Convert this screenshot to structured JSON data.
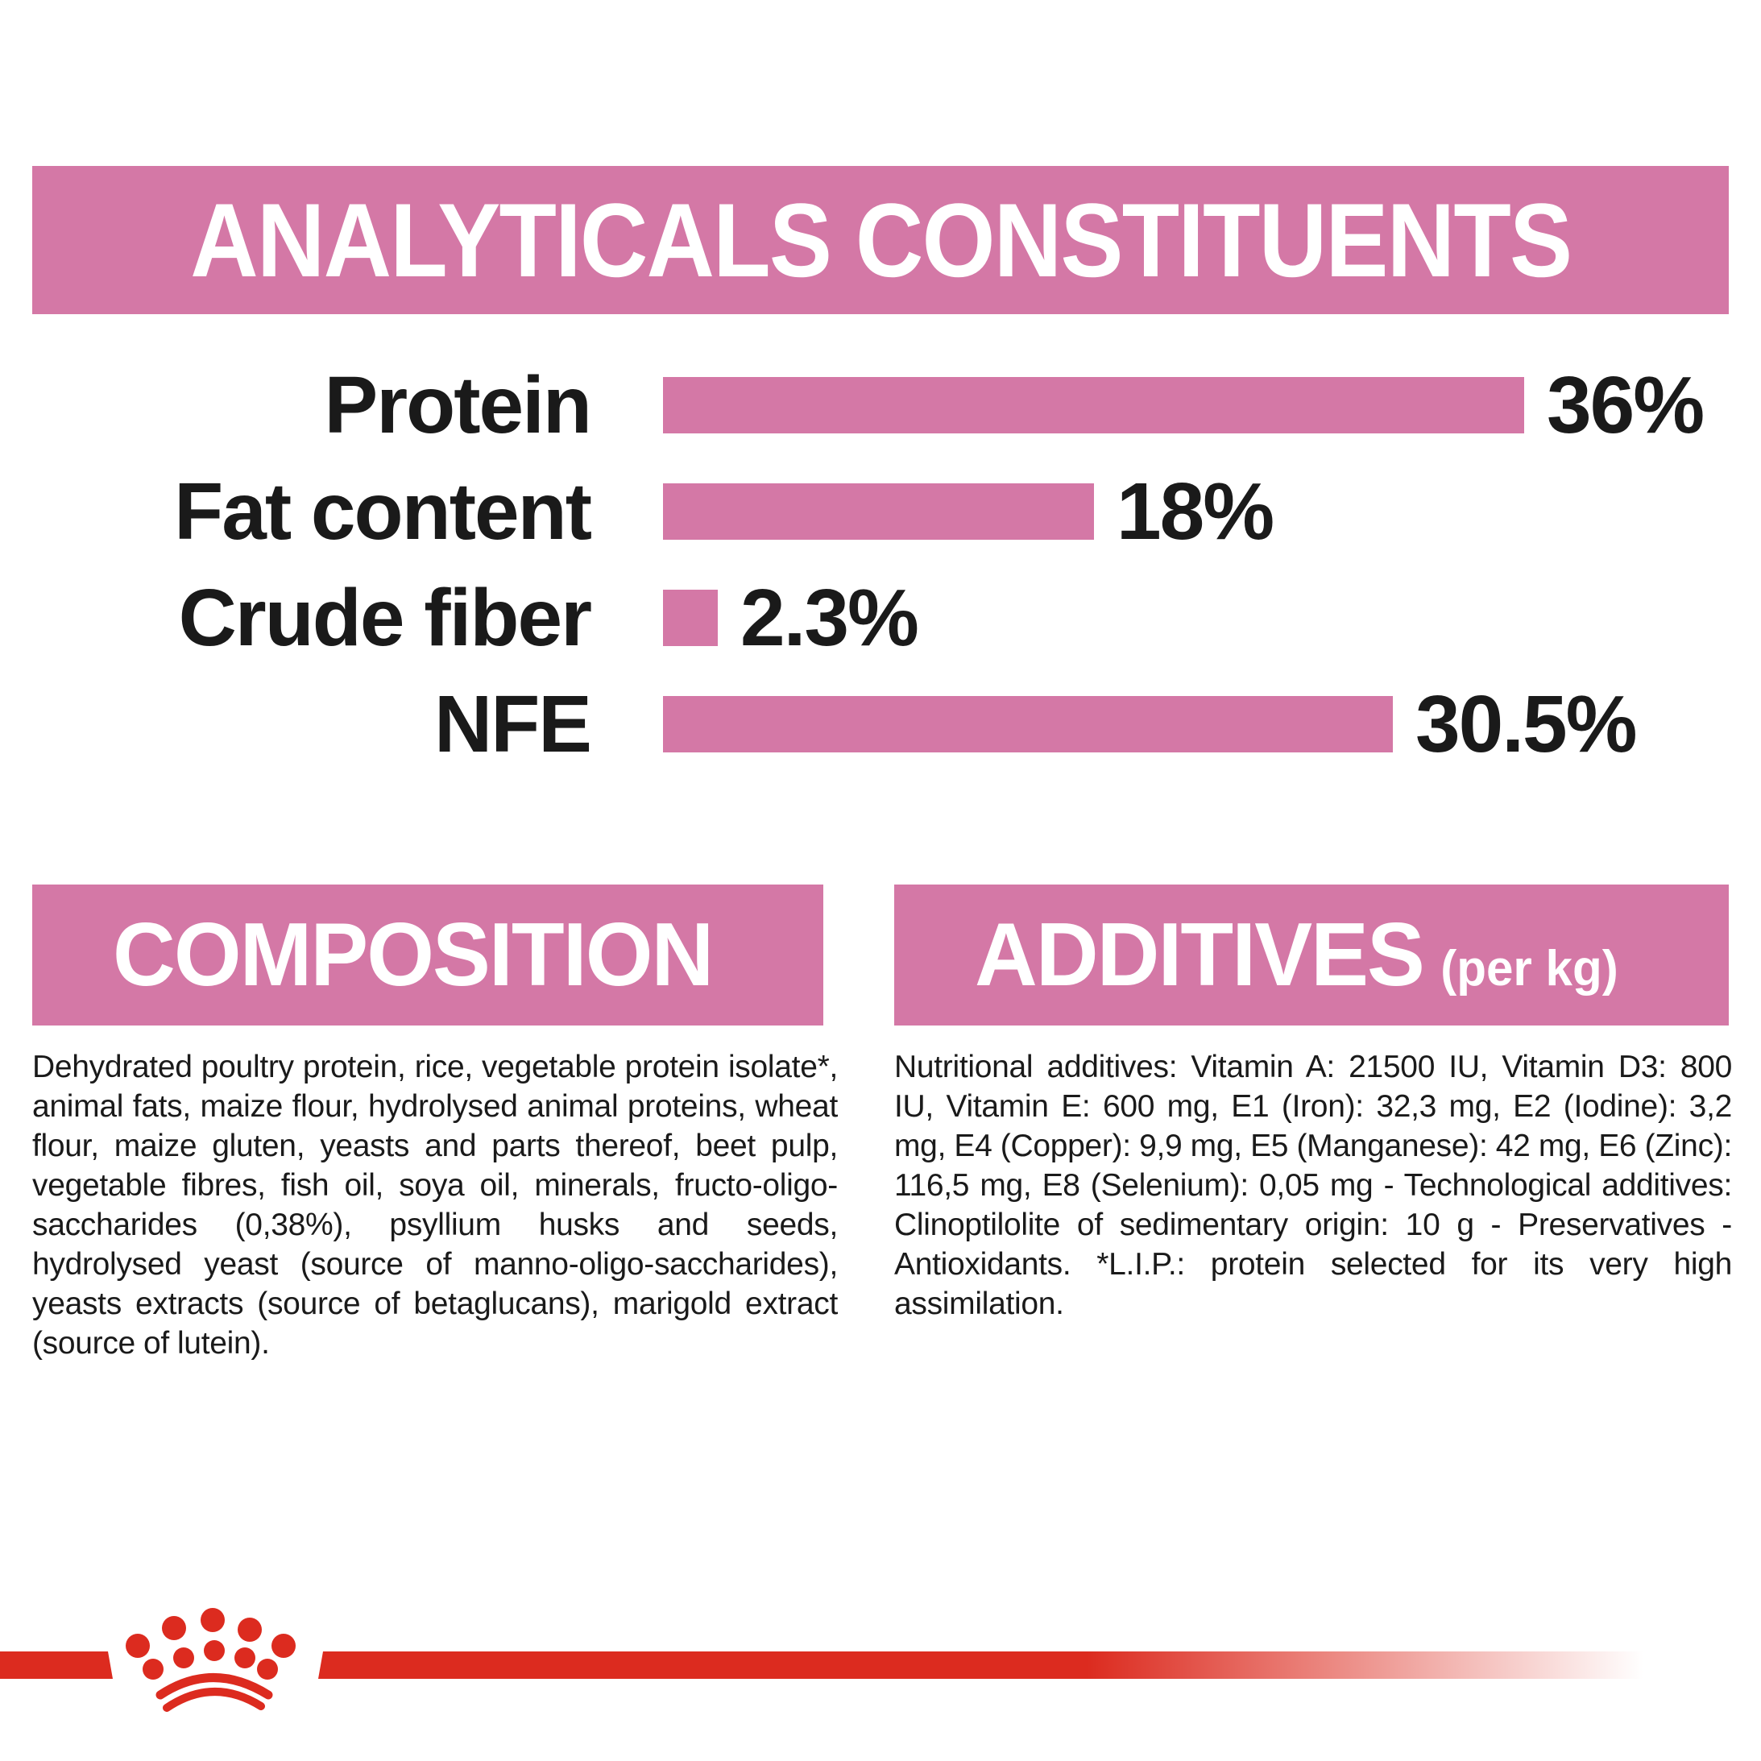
{
  "colors": {
    "pink": "#d478a6",
    "brand_red": "#dc2b1f",
    "ink": "#1a1a1a",
    "background": "#ffffff"
  },
  "analyticals": {
    "title": "ANALYTICALS CONSTITUENTS"
  },
  "chart_data": {
    "type": "bar",
    "orientation": "horizontal",
    "title": "ANALYTICALS CONSTITUENTS",
    "categories": [
      "Protein",
      "Fat content",
      "Crude fiber",
      "NFE"
    ],
    "values": [
      36,
      18,
      2.3,
      30.5
    ],
    "value_labels": [
      "36%",
      "18%",
      "2.3%",
      "30.5%"
    ],
    "xlim": [
      0,
      36
    ],
    "bar_color": "#d478a6",
    "grid": false,
    "legend": false
  },
  "composition": {
    "title": "COMPOSITION",
    "body": "Dehydrated poultry protein, rice, vegetable protein isolate*, animal fats, maize flour, hydrolysed animal proteins, wheat flour, maize gluten, yeasts and parts thereof, beet pulp, vegetable fibres, fish oil, soya oil, minerals, fructo-oligo- saccharides (0,38%), psyllium husks and seeds, hydrolysed yeast (source of manno-oligo-saccharides), yeasts extracts (source of betaglucans), marigold extract (source of lutein)."
  },
  "additives": {
    "title": "ADDITIVES",
    "title_suffix": "(per kg)",
    "body": "Nutritional additives: Vitamin A: 21500 IU, Vitamin D3: 800 IU, Vitamin E: 600 mg, E1 (Iron): 32,3 mg, E2 (Iodine): 3,2 mg, E4 (Copper): 9,9 mg, E5 (Manganese): 42 mg, E6 (Zinc): 116,5 mg, E8 (Selenium): 0,05 mg - Technological additives: Clinoptilolite of sedimentary origin: 10 g - Preservatives - Antioxidants. *L.I.P.: protein selected for its very high assimilation."
  },
  "footer": {
    "logo_icon": "royal-canin-crown"
  }
}
